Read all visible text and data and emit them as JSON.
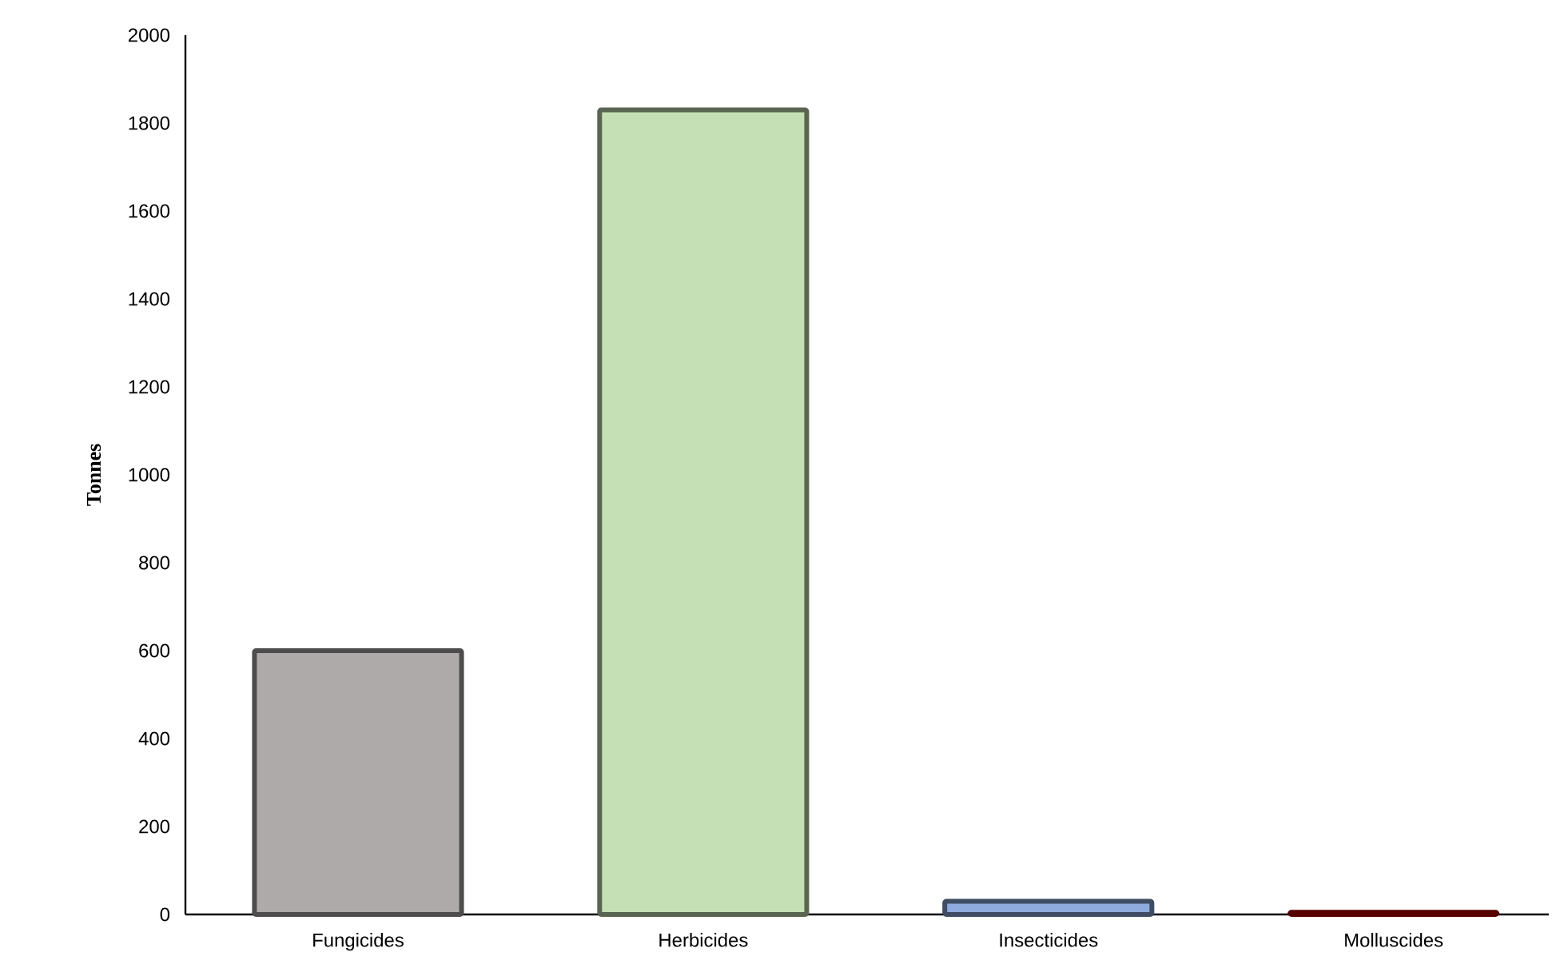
{
  "chart_data": {
    "type": "bar",
    "ylabel": "Tonnes",
    "categories": [
      "Fungicides",
      "Herbicides",
      "Insecticides",
      "Molluscides"
    ],
    "values": [
      600,
      1830,
      30,
      5
    ],
    "colors": [
      "#aeaaaa",
      "#c5e0b4",
      "#8faadc",
      "#c00000"
    ],
    "ylim": [
      0,
      2000
    ],
    "yticks": [
      0,
      200,
      400,
      600,
      800,
      1000,
      1200,
      1400,
      1600,
      1800,
      2000
    ],
    "grid": false
  }
}
